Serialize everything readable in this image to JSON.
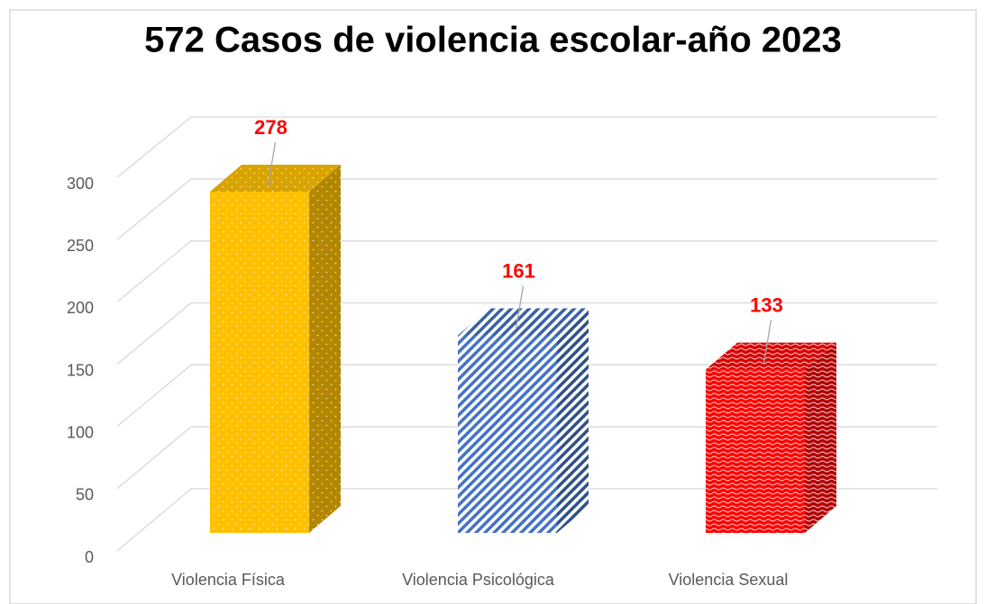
{
  "chart_data": {
    "type": "bar3d",
    "title": "572 Casos de violencia escolar-año 2023",
    "categories": [
      "Violencia Física",
      "Violencia Psicológica",
      "Violencia Sexual"
    ],
    "values": [
      278,
      161,
      133
    ],
    "colors": [
      "#ffc000",
      "#4472c4",
      "#ff0000"
    ],
    "ylim": [
      0,
      300
    ],
    "yticks": [
      0,
      50,
      100,
      150,
      200,
      250,
      300
    ],
    "grid": true
  }
}
